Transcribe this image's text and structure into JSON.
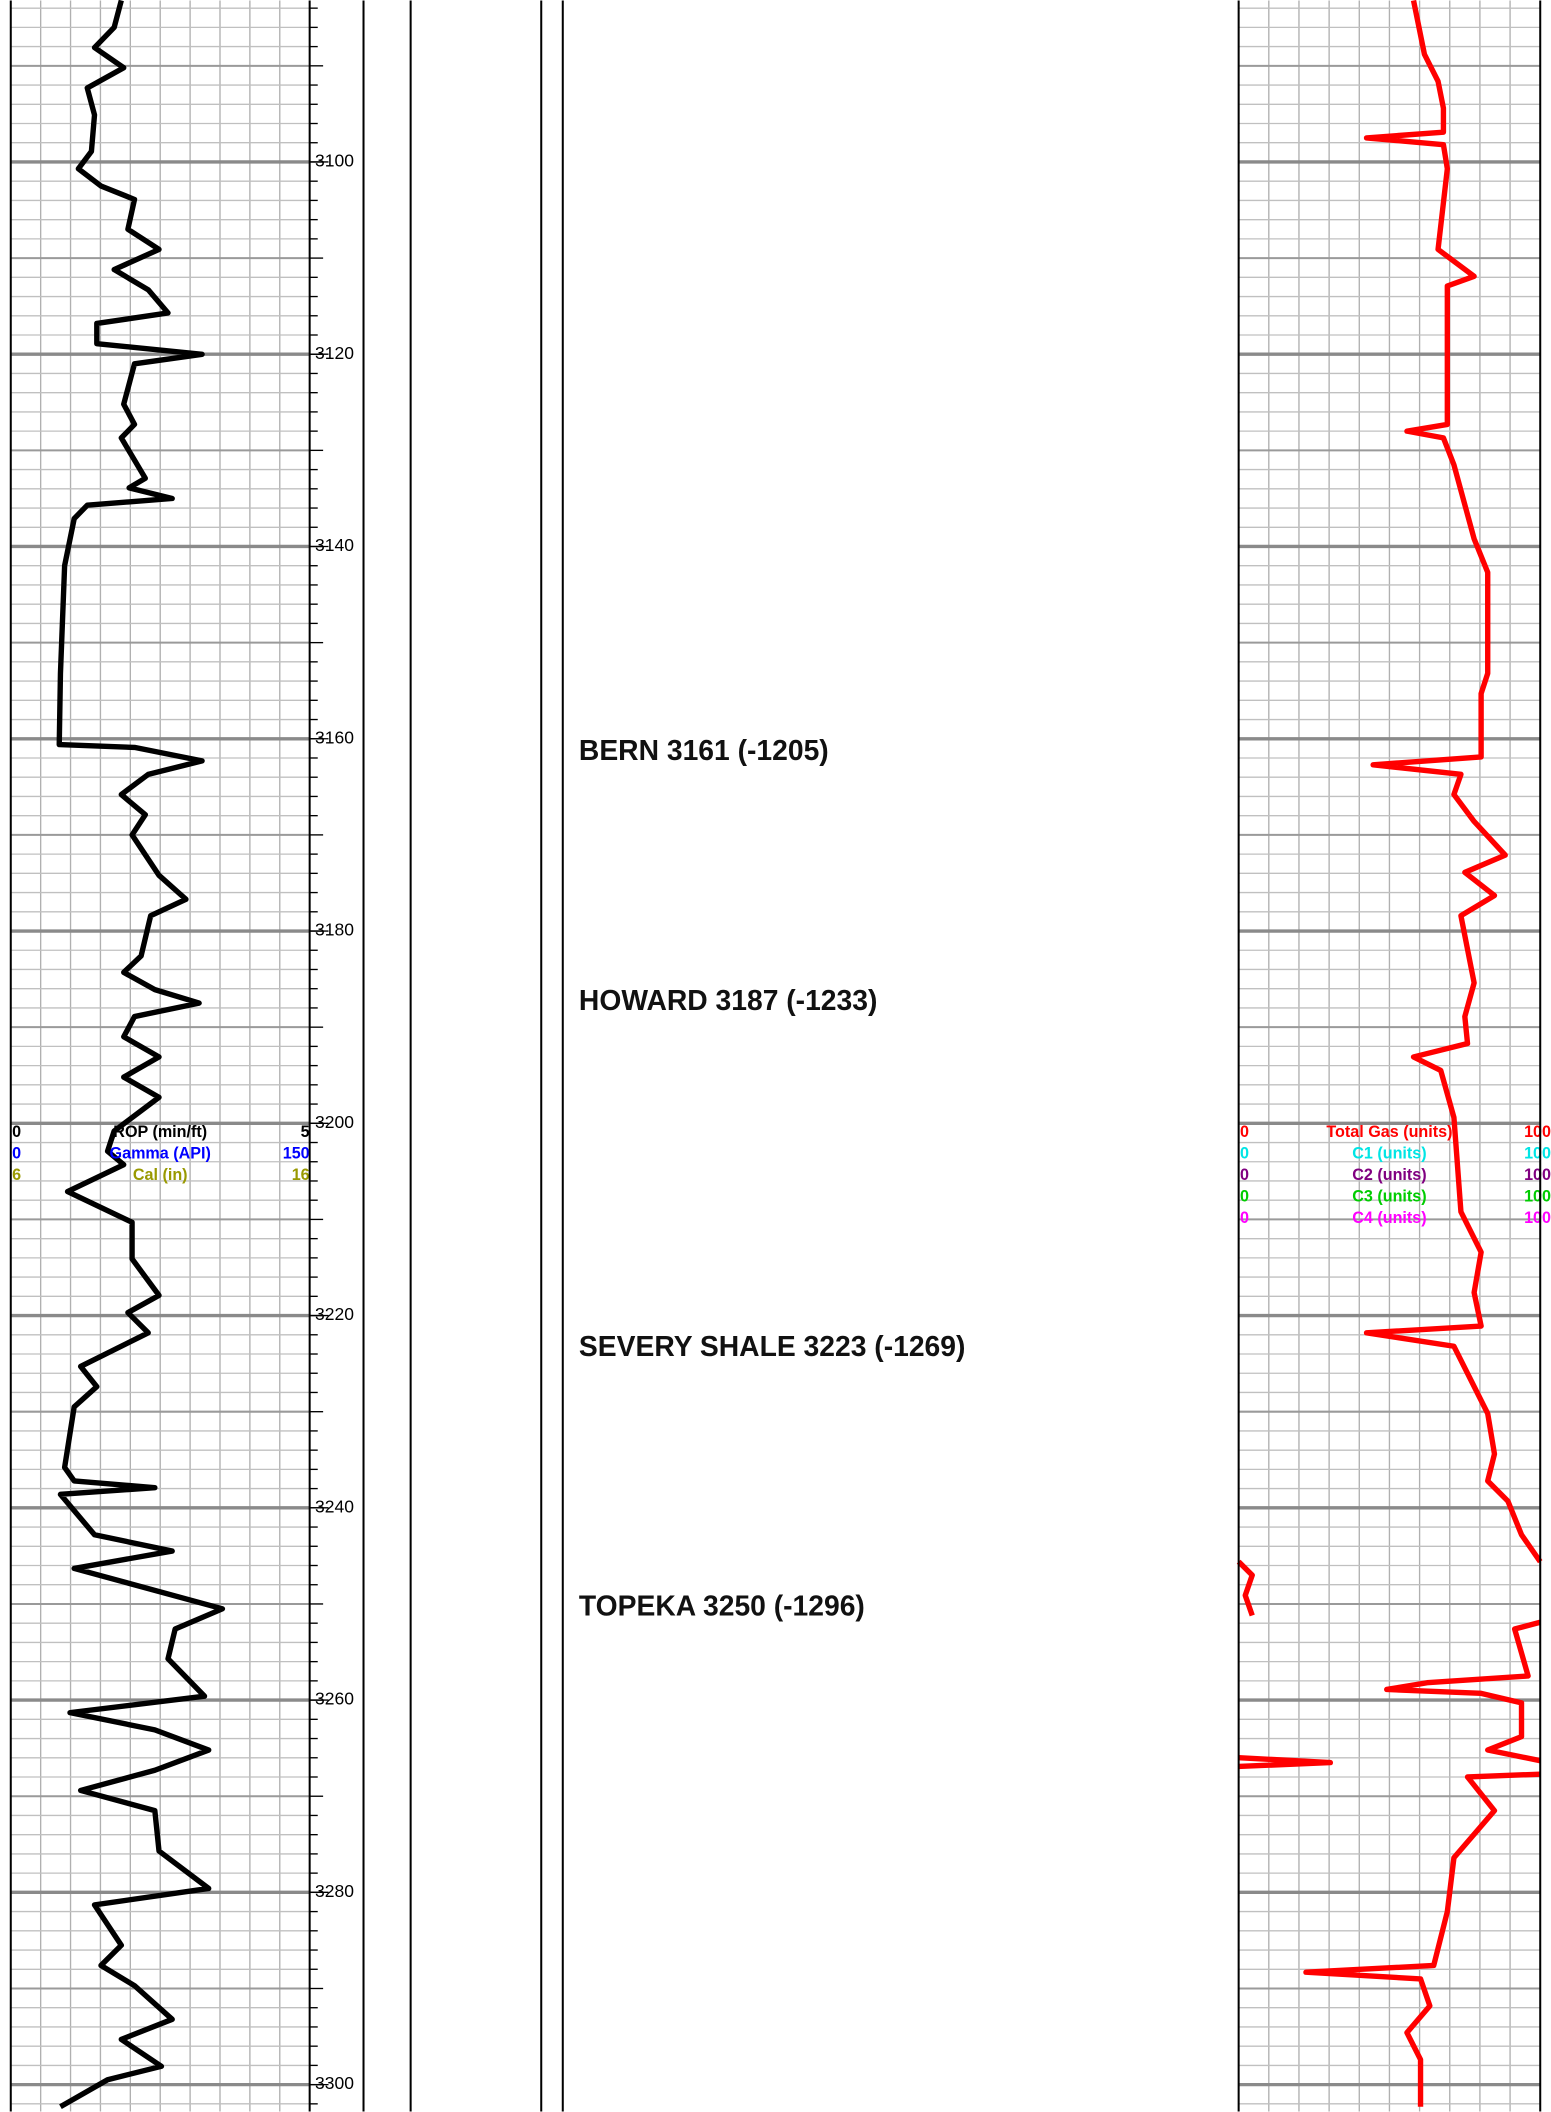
{
  "chart_data": {
    "type": "well-log",
    "ylim": [
      3083.2,
      3302.8
    ],
    "yticks": [
      3100,
      3120,
      3140,
      3160,
      3180,
      3200,
      3220,
      3240,
      3260,
      3280,
      3300
    ],
    "grid": true,
    "tracks": [
      {
        "series": [
          {
            "name": "ROP (min/ft)",
            "color": "#000000",
            "range": [
              0,
              5
            ],
            "x": [
              3083.2,
              3086.0,
              3088.1,
              3090.2,
              3092.3,
              3095.1,
              3098.9,
              3100.7,
              3102.5,
              3103.9,
              3107.0,
              3109.1,
              3111.2,
              3113.3,
              3115.7,
              3116.8,
              3118.9,
              3120.0,
              3121.0,
              3125.2,
              3127.3,
              3128.7,
              3132.9,
              3133.9,
              3135.0,
              3135.7,
              3137.1,
              3142.0,
              3153.2,
              3160.6,
              3160.9,
              3162.3,
              3163.7,
              3165.8,
              3167.9,
              3170.0,
              3174.2,
              3176.7,
              3178.4,
              3182.6,
              3184.3,
              3186.1,
              3187.5,
              3188.9,
              3191.0,
              3193.1,
              3195.2,
              3197.3,
              3200.8,
              3202.9,
              3204.3,
              3207.1,
              3210.3,
              3214.1,
              3217.9,
              3219.7,
              3221.8,
              3225.3,
              3227.4,
              3229.5,
              3235.8,
              3237.2,
              3237.9,
              3238.6,
              3242.8,
              3244.5,
              3246.3,
              3250.5,
              3252.6,
              3255.7,
              3259.6,
              3261.3,
              3263.1,
              3265.2,
              3267.3,
              3269.4,
              3271.5,
              3275.7,
              3279.6,
              3281.3,
              3285.5,
              3287.6,
              3289.7,
              3293.2,
              3295.3,
              3298.1,
              3299.5,
              3302.3
            ],
            "values": [
              1.85,
              1.73,
              1.4,
              1.89,
              1.28,
              1.4,
              1.35,
              1.13,
              1.51,
              2.07,
              1.96,
              2.48,
              1.73,
              2.3,
              2.63,
              1.44,
              1.44,
              3.2,
              2.07,
              1.89,
              2.07,
              1.85,
              2.25,
              1.98,
              2.7,
              1.28,
              1.06,
              0.9,
              0.83,
              0.81,
              2.07,
              3.2,
              2.3,
              1.85,
              2.25,
              2.03,
              2.48,
              2.93,
              2.34,
              2.18,
              1.89,
              2.41,
              3.15,
              2.07,
              1.89,
              2.48,
              1.89,
              2.48,
              1.73,
              1.62,
              1.89,
              0.95,
              2.03,
              2.03,
              2.48,
              1.96,
              2.3,
              1.17,
              1.44,
              1.06,
              0.9,
              1.06,
              2.41,
              0.83,
              1.4,
              2.7,
              1.06,
              3.54,
              2.75,
              2.63,
              3.24,
              0.99,
              2.41,
              3.31,
              2.41,
              1.17,
              2.41,
              2.48,
              3.31,
              1.4,
              1.85,
              1.51,
              2.07,
              2.7,
              1.85,
              2.52,
              1.62,
              0.83
            ]
          },
          {
            "name": "Gamma (API)",
            "color": "#0000ff",
            "range": [
              0,
              150
            ]
          },
          {
            "name": "Cal (in)",
            "color": "#999900",
            "range": [
              6,
              16
            ]
          }
        ]
      },
      {
        "series": [
          {
            "name": "Total Gas (units)",
            "color": "#ff0000",
            "range": [
              0,
              100
            ],
            "x": [
              3083.2,
              3088.8,
              3091.6,
              3094.4,
              3096.9,
              3097.5,
              3098.2,
              3100.7,
              3109.1,
              3111.9,
              3112.9,
              3127.3,
              3128.0,
              3128.7,
              3131.5,
              3139.2,
              3142.7,
              3153.2,
              3155.3,
              3161.9,
              3162.7,
              3163.7,
              3165.8,
              3168.6,
              3172.1,
              3173.9,
              3176.3,
              3178.4,
              3185.4,
              3188.9,
              3191.7,
              3193.1,
              3194.5,
              3199.4,
              3209.2,
              3213.4,
              3217.6,
              3221.1,
              3221.8,
              3223.2,
              3230.2,
              3234.4,
              3237.2,
              3239.3,
              3242.8,
              3245.6,
              null,
              3245.6,
              3247.0,
              3249.1,
              3251.2,
              null,
              3251.9,
              3252.6,
              3257.5,
              3258.2,
              3258.9,
              3259.3,
              3260.3,
              3263.8,
              3265.2,
              3266.3,
              null,
              3266.0,
              3266.5,
              3266.9,
              null,
              3267.7,
              3268.0,
              3271.5,
              3276.4,
              3282.0,
              3287.6,
              3288.3,
              3289.0,
              3291.8,
              3294.6,
              3297.4,
              3302.3
            ],
            "values": [
              58.0,
              61.6,
              66.1,
              67.9,
              67.9,
              42.4,
              67.9,
              69.2,
              66.1,
              78.1,
              69.2,
              69.2,
              55.8,
              67.9,
              71.4,
              78.1,
              82.6,
              82.6,
              80.4,
              80.4,
              44.6,
              73.7,
              71.4,
              78.1,
              88.4,
              75.0,
              84.8,
              73.7,
              78.1,
              75.0,
              75.9,
              58.0,
              67.0,
              71.4,
              73.7,
              80.4,
              78.1,
              80.4,
              42.4,
              71.4,
              82.6,
              84.8,
              82.6,
              89.3,
              93.8,
              100,
              null,
              0,
              4.5,
              2.2,
              4.5,
              null,
              100,
              91.5,
              96.0,
              62.5,
              49.1,
              80.4,
              93.8,
              93.8,
              82.6,
              100,
              null,
              0,
              30.4,
              0,
              null,
              100,
              75.9,
              84.8,
              71.4,
              69.2,
              64.7,
              22.3,
              60.3,
              63.4,
              55.8,
              60.3,
              60.3
            ]
          },
          {
            "name": "C1 (units)",
            "color": "#00e5e5",
            "range": [
              0,
              100
            ]
          },
          {
            "name": "C2 (units)",
            "color": "#800080",
            "range": [
              0,
              100
            ]
          },
          {
            "name": "C3 (units)",
            "color": "#00cc00",
            "range": [
              0,
              100
            ]
          },
          {
            "name": "C4 (units)",
            "color": "#ff00ff",
            "range": [
              0,
              100
            ]
          }
        ]
      }
    ],
    "tops": [
      {
        "label": "BERN 3161 (-1205)",
        "depth": 3161
      },
      {
        "label": "HOWARD 3187 (-1233)",
        "depth": 3187
      },
      {
        "label": "SEVERY SHALE 3223 (-1269)",
        "depth": 3223
      },
      {
        "label": "TOPEKA 3250 (-1296)",
        "depth": 3250
      }
    ]
  }
}
